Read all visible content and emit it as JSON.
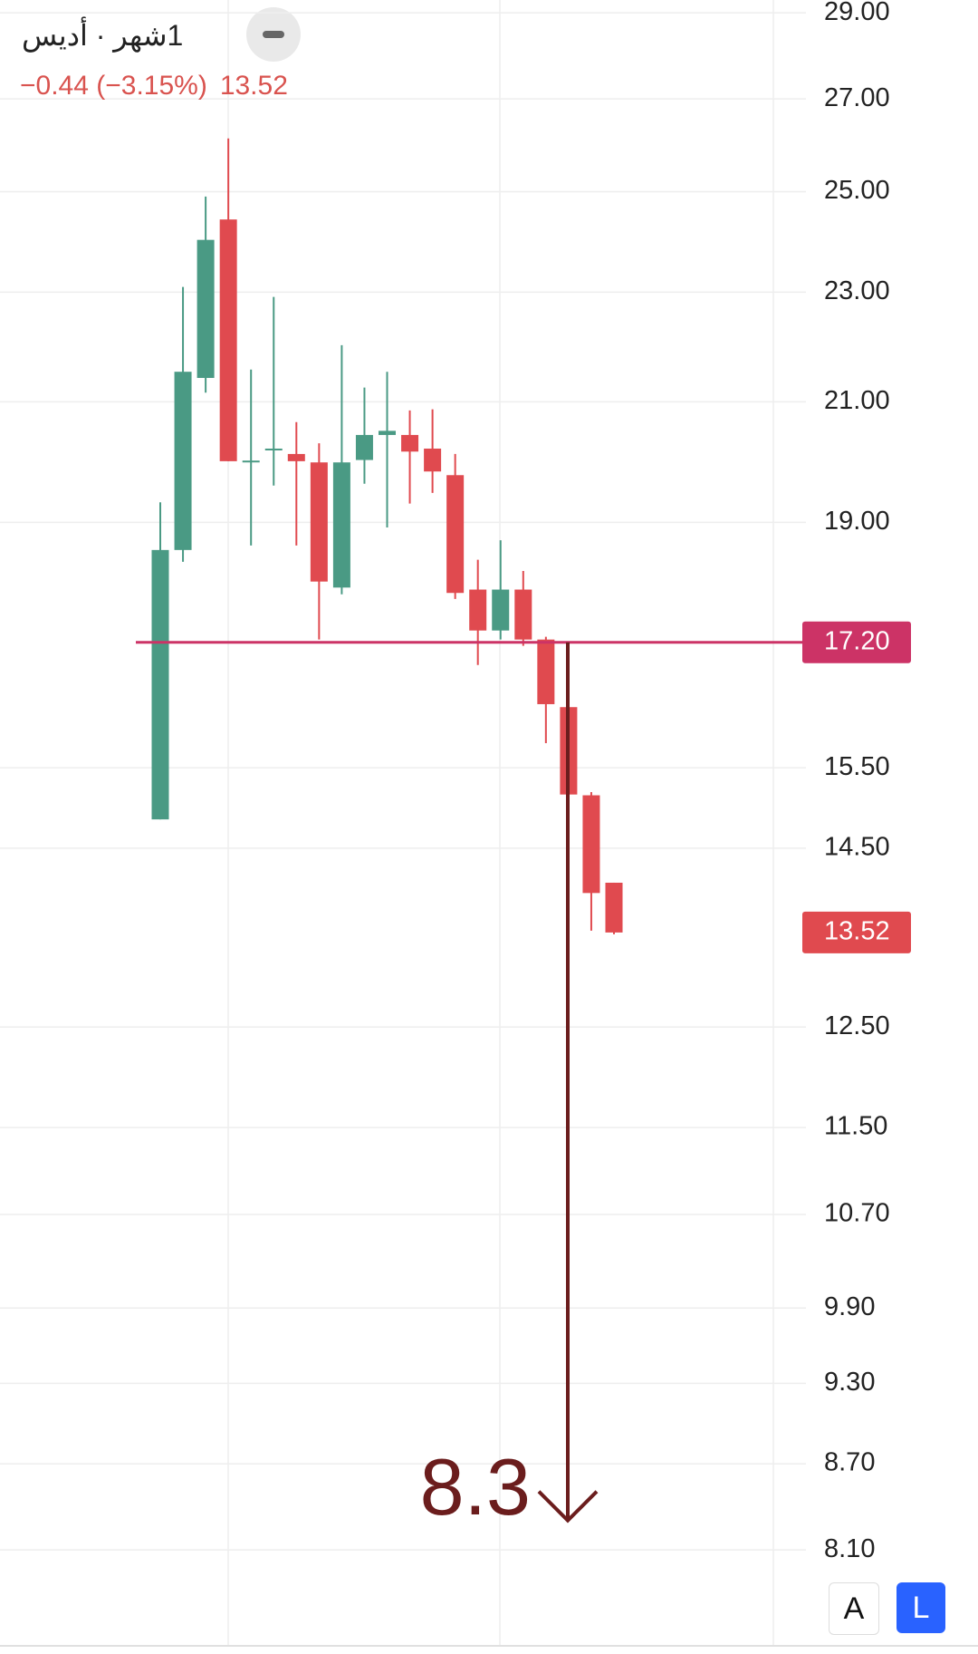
{
  "chart_data": {
    "type": "candlestick",
    "title": "1شهر · أديس",
    "change": "−0.44 (−3.15%)",
    "last_price": 13.52,
    "log_scale": true,
    "grid": true,
    "up_color": "#4a9a84",
    "down_color": "#e04a4f",
    "ylim": [
      7.48,
      29.31
    ],
    "yticks": [
      {
        "value": 29,
        "label": "29.00"
      },
      {
        "value": 27,
        "label": "27.00"
      },
      {
        "value": 25,
        "label": "25.00"
      },
      {
        "value": 23,
        "label": "23.00"
      },
      {
        "value": 21,
        "label": "21.00"
      },
      {
        "value": 19,
        "label": "19.00"
      },
      {
        "value": 15.5,
        "label": "15.50"
      },
      {
        "value": 14.5,
        "label": "14.50"
      },
      {
        "value": 12.5,
        "label": "12.50"
      },
      {
        "value": 11.5,
        "label": "11.50"
      },
      {
        "value": 10.7,
        "label": "10.70"
      },
      {
        "value": 9.9,
        "label": "9.90"
      },
      {
        "value": 9.3,
        "label": "9.30"
      },
      {
        "value": 8.7,
        "label": "8.70"
      },
      {
        "value": 8.1,
        "label": "8.10"
      }
    ],
    "open": [
      14.85,
      18.57,
      21.42,
      24.43,
      19.98,
      20.2,
      20.11,
      19.97,
      18.0,
      20.01,
      20.43,
      20.43,
      20.2,
      19.76,
      17.97,
      17.37,
      17.97,
      17.24,
      16.3,
      15.15,
      14.09
    ],
    "high": [
      19.32,
      23.1,
      24.9,
      26.13,
      21.57,
      22.91,
      20.65,
      20.29,
      22.01,
      21.25,
      21.53,
      20.85,
      20.87,
      20.11,
      18.42,
      18.72,
      18.25,
      17.28,
      16.3,
      15.19,
      14.09
    ],
    "low": [
      14.85,
      18.39,
      21.16,
      19.99,
      18.64,
      19.59,
      18.64,
      17.24,
      17.9,
      19.62,
      18.92,
      19.3,
      19.47,
      17.83,
      16.88,
      17.24,
      17.15,
      15.82,
      13.82,
      13.54,
      13.5
    ],
    "close": [
      18.57,
      21.53,
      24.02,
      19.99,
      20.0,
      20.2,
      19.99,
      18.09,
      19.97,
      20.43,
      20.5,
      20.15,
      19.82,
      17.92,
      17.37,
      17.97,
      17.24,
      16.34,
      15.16,
      13.97,
      13.52
    ],
    "level": {
      "value": 17.2,
      "label": "17.20",
      "color": "#cc3366"
    },
    "annotation": {
      "target": 8.3,
      "color": "#6b1d1d"
    },
    "buttons": [
      "A",
      "L"
    ]
  }
}
